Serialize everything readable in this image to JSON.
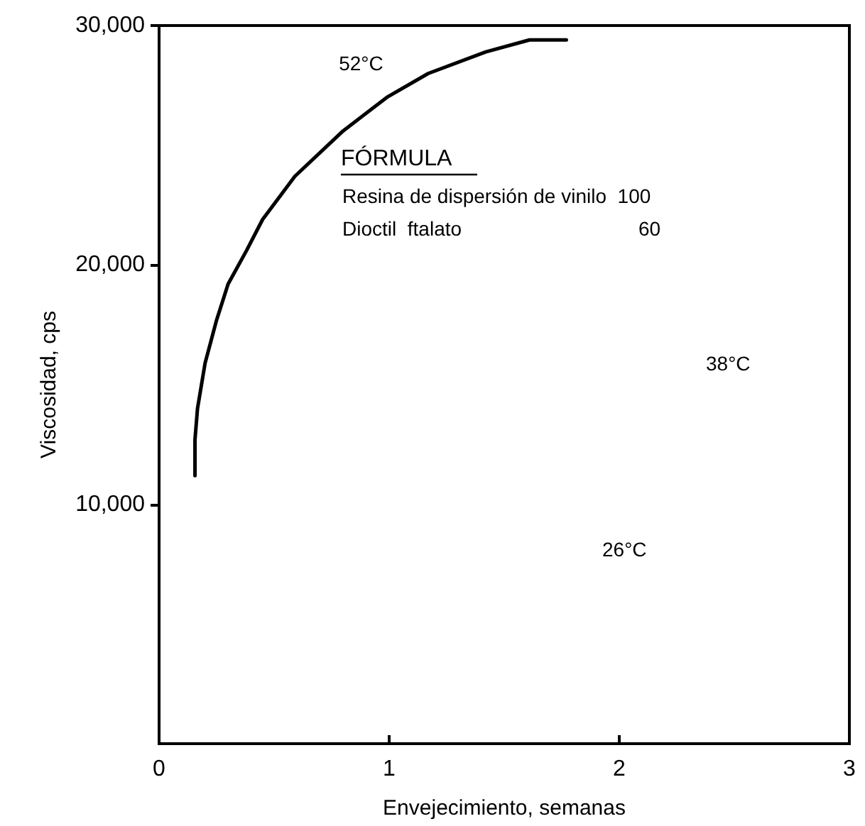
{
  "chart_data": {
    "type": "line",
    "xlabel": "Envejecimiento, semanas",
    "ylabel": "Viscosidad, cps",
    "xlim": [
      0,
      3
    ],
    "xticks": [
      0,
      1,
      2,
      3
    ],
    "ylim": [
      0,
      30000
    ],
    "yticks": [
      {
        "value": 10000,
        "label": "10,000"
      },
      {
        "value": 20000,
        "label": "20,000"
      },
      {
        "value": 30000,
        "label": "30,000"
      }
    ],
    "series": [
      {
        "name": "52°C",
        "color": "#000000",
        "x": [
          0.156,
          0.156,
          0.167,
          0.2,
          0.25,
          0.3,
          0.38,
          0.45,
          0.59,
          0.8,
          0.99,
          1.17,
          1.42,
          1.61,
          1.77
        ],
        "values": [
          11200,
          12700,
          14000,
          15900,
          17700,
          19200,
          20600,
          21900,
          23700,
          25600,
          27000,
          28000,
          28900,
          29400,
          29400
        ]
      }
    ],
    "annotations": [
      "38°C",
      "26°C",
      "FÓRMULA",
      "Resina de dispersión de vinilo  100",
      "Dioctil  ftalato                                60"
    ],
    "grid": false,
    "legend": false,
    "marker": "none",
    "line_style": "solid"
  }
}
